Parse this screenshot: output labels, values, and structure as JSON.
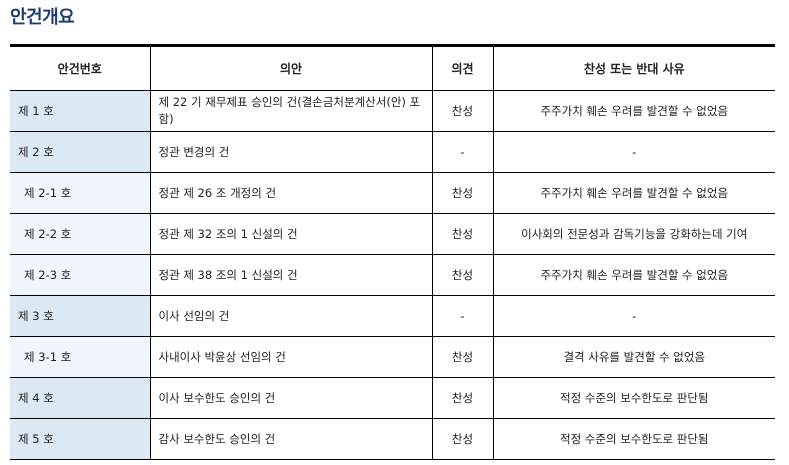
{
  "title": "안건개요",
  "headers": [
    "안건번호",
    "의안",
    "의견",
    "찬성 또는 반대 사유"
  ],
  "rows": [
    {
      "no": "제 1 호",
      "item": "제 22 기 재무제표 승인의 건(결손금처분계산서(안) 포함)",
      "opinion": "찬성",
      "reason": "주주가치 훼손 우려를 발견할 수 없었음",
      "sub": false
    },
    {
      "no": "제 2 호",
      "item": "정관 변경의 건",
      "opinion": "-",
      "reason": "-",
      "sub": false
    },
    {
      "no": "제 2-1 호",
      "item": "정관 제 26 조 개정의 건",
      "opinion": "찬성",
      "reason": "주주가치 훼손 우려를 발견할 수 없었음",
      "sub": true
    },
    {
      "no": "제 2-2 호",
      "item": "정관 제 32 조의 1 신설의 건",
      "opinion": "찬성",
      "reason": "이사회의 전문성과 감독기능을 강화하는데 기여",
      "sub": true
    },
    {
      "no": "제 2-3 호",
      "item": "정관 제 38 조의 1 신설의 건",
      "opinion": "찬성",
      "reason": "주주가치 훼손 우려를 발견할 수 없었음",
      "sub": true
    },
    {
      "no": "제 3 호",
      "item": "이사 선임의 건",
      "opinion": "-",
      "reason": "-",
      "sub": false
    },
    {
      "no": "제 3-1 호",
      "item": "사내이사 박윤상 선임의 건",
      "opinion": "찬성",
      "reason": "결격 사유를 발견할 수 없었음",
      "sub": true
    },
    {
      "no": "제 4 호",
      "item": "이사 보수한도 승인의 건",
      "opinion": "찬성",
      "reason": "적정 수준의 보수한도로 판단됨",
      "sub": false
    },
    {
      "no": "제 5 호",
      "item": "감사 보수한도 승인의 건",
      "opinion": "찬성",
      "reason": "적정 수준의 보수한도로 판단됨",
      "sub": false
    }
  ]
}
